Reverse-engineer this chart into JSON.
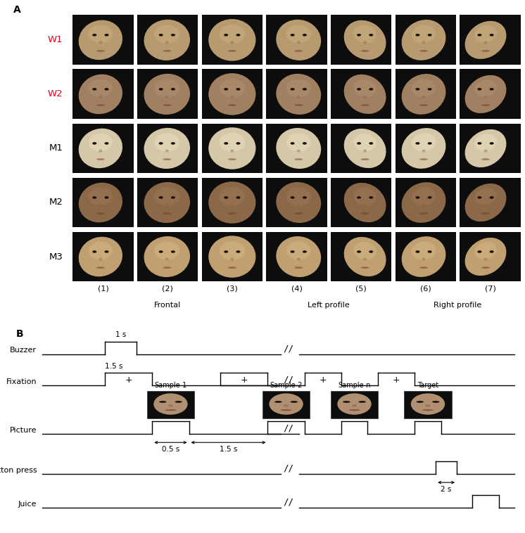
{
  "fig_width": 7.46,
  "fig_height": 7.58,
  "panel_A_label": "A",
  "panel_B_label": "B",
  "row_labels": [
    "W1",
    "W2",
    "M1",
    "M2",
    "M3"
  ],
  "row_label_colors": [
    "#e8001c",
    "#e8001c",
    "#000000",
    "#000000",
    "#000000"
  ],
  "col_numbers": [
    "(1)",
    "(2)",
    "(3)",
    "(4)",
    "(5)",
    "(6)",
    "(7)"
  ],
  "col_group_labels": [
    "Frontal",
    "Left profile",
    "Right profile"
  ],
  "n_rows": 5,
  "n_cols": 7,
  "buzzer_label": "Buzzer",
  "fixation_label": "Fixation",
  "picture_label": "Picture",
  "button_press_label": "Button press",
  "juice_label": "Juice",
  "timing_1s": "1 s",
  "timing_1p5s": "1.5 s",
  "timing_0p5s": "0.5 s",
  "timing_1p5s_2": "1.5 s",
  "timing_2s": "2 s",
  "sample_labels": [
    "Sample-1",
    "Sample-2",
    "Sample-n",
    "Target"
  ],
  "figure_background": "#ffffff",
  "line_color": "#000000",
  "face_skin_colors": [
    "#b89a70",
    "#a08060",
    "#d4c8a8",
    "#8a6848",
    "#c0a070"
  ],
  "face_highlight_colors": [
    "#c8b080",
    "#b09070",
    "#e8e0c0",
    "#a07858",
    "#d4b888"
  ]
}
